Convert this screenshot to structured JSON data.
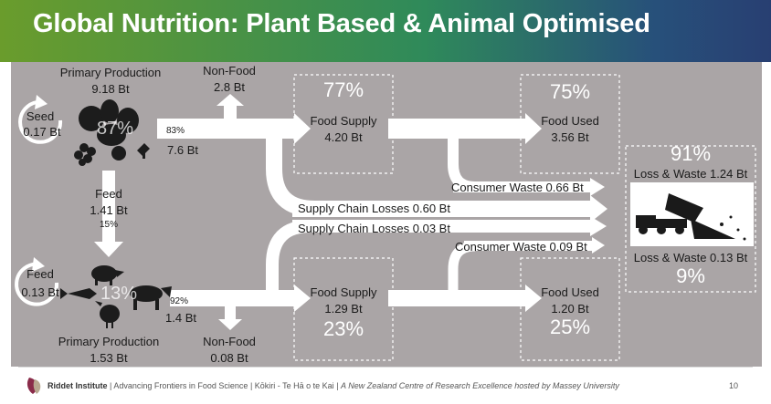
{
  "header": {
    "title": "Global Nutrition: Plant Based & Animal Optimised"
  },
  "plant": {
    "primary_label": "Primary Production",
    "primary_value": "9.18 Bt",
    "seed_label": "Seed",
    "seed_value": "0.17 Bt",
    "share": "87%",
    "nonfood_label": "Non-Food",
    "nonfood_value": "2.8 Bt",
    "to_food_pct": "83%",
    "to_food_value": "7.6 Bt",
    "feed_label": "Feed",
    "feed_value": "1.41 Bt",
    "feed_pct": "15%",
    "supply_pct": "77%",
    "supply_label": "Food Supply",
    "supply_value": "4.20 Bt",
    "used_pct": "75%",
    "used_label": "Food Used",
    "used_value": "3.56 Bt"
  },
  "animal": {
    "primary_label": "Primary Production",
    "primary_value": "1.53 Bt",
    "feed_label": "Feed",
    "feed_value": "0.13 Bt",
    "share": "13%",
    "to_food_pct": "92%",
    "to_food_value": "1.4 Bt",
    "nonfood_label": "Non-Food",
    "nonfood_value": "0.08 Bt",
    "supply_label": "Food Supply",
    "supply_value": "1.29 Bt",
    "supply_pct": "23%",
    "used_label": "Food Used",
    "used_value": "1.20 Bt",
    "used_pct": "25%"
  },
  "losses": {
    "consumer_waste_plant": "Consumer Waste 0.66 Bt",
    "supply_chain_plant": "Supply Chain Losses 0.60 Bt",
    "supply_chain_animal": "Supply Chain Losses 0.03 Bt",
    "consumer_waste_animal": "Consumer Waste 0.09 Bt",
    "total_plant_pct": "91%",
    "total_plant_label": "Loss & Waste 1.24 Bt",
    "total_animal_label": "Loss & Waste 0.13 Bt",
    "total_animal_pct": "9%"
  },
  "icons": {
    "plant": "plant-produce-icon",
    "animal": "livestock-icon",
    "truck": "dump-truck-icon",
    "cycle": "recycle-arrow-icon"
  },
  "footer": {
    "org": "Riddet Institute",
    "tagline": "Advancing Frontiers in Food Science",
    "maori": "Kōkiri - Te Hā o te Kai",
    "desc": "A New Zealand Centre of Research Excellence hosted by Massey University",
    "page": "10"
  },
  "colors": {
    "panel": "#aaa5a6",
    "arrow": "#ffffff",
    "header_start": "#6a9c2c",
    "header_end": "#283f72"
  }
}
